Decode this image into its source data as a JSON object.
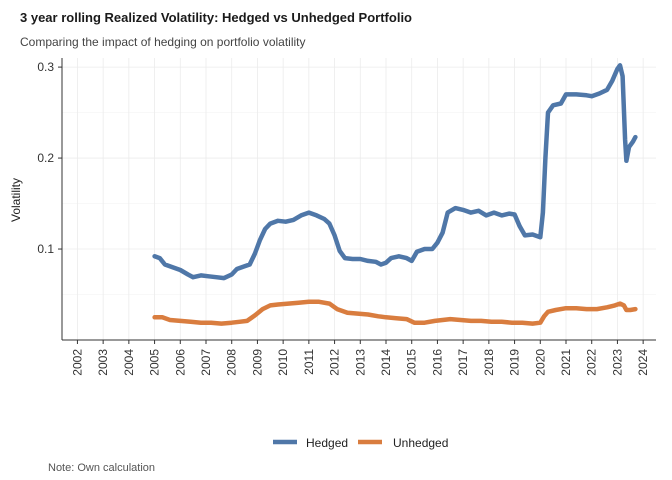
{
  "chart_data": {
    "type": "line",
    "title": "3 year rolling Realized Volatility: Hedged vs Unhedged Portfolio",
    "subtitle": "Comparing the impact of hedging on portfolio volatility",
    "xlabel": "",
    "ylabel": "Volatility",
    "caption": "Note: Own calculation",
    "xlim": [
      2001.4,
      2024.5
    ],
    "ylim": [
      0.0,
      0.31
    ],
    "x_ticks": [
      "2002",
      "2003",
      "2004",
      "2005",
      "2006",
      "2007",
      "2008",
      "2009",
      "2010",
      "2011",
      "2012",
      "2013",
      "2014",
      "2015",
      "2016",
      "2017",
      "2018",
      "2019",
      "2020",
      "2021",
      "2022",
      "2023",
      "2024"
    ],
    "y_ticks": [
      0.1,
      0.2,
      0.3
    ],
    "y_tick_labels": [
      "0.1",
      "0.2",
      "0.3"
    ],
    "grid": true,
    "legend_position": "bottom",
    "series": [
      {
        "name": "Hedged",
        "color": "#4f77a8",
        "points": [
          [
            2005.0,
            0.092
          ],
          [
            2005.2,
            0.09
          ],
          [
            2005.4,
            0.083
          ],
          [
            2005.7,
            0.08
          ],
          [
            2006.0,
            0.077
          ],
          [
            2006.3,
            0.072
          ],
          [
            2006.5,
            0.069
          ],
          [
            2006.8,
            0.071
          ],
          [
            2007.1,
            0.07
          ],
          [
            2007.4,
            0.069
          ],
          [
            2007.7,
            0.068
          ],
          [
            2008.0,
            0.072
          ],
          [
            2008.2,
            0.078
          ],
          [
            2008.5,
            0.081
          ],
          [
            2008.7,
            0.083
          ],
          [
            2008.9,
            0.095
          ],
          [
            2009.1,
            0.11
          ],
          [
            2009.3,
            0.122
          ],
          [
            2009.5,
            0.128
          ],
          [
            2009.8,
            0.131
          ],
          [
            2010.1,
            0.13
          ],
          [
            2010.4,
            0.132
          ],
          [
            2010.7,
            0.137
          ],
          [
            2011.0,
            0.14
          ],
          [
            2011.3,
            0.137
          ],
          [
            2011.6,
            0.133
          ],
          [
            2011.8,
            0.128
          ],
          [
            2012.0,
            0.115
          ],
          [
            2012.2,
            0.098
          ],
          [
            2012.4,
            0.09
          ],
          [
            2012.7,
            0.089
          ],
          [
            2013.0,
            0.089
          ],
          [
            2013.3,
            0.087
          ],
          [
            2013.6,
            0.086
          ],
          [
            2013.8,
            0.083
          ],
          [
            2014.0,
            0.085
          ],
          [
            2014.2,
            0.09
          ],
          [
            2014.5,
            0.092
          ],
          [
            2014.8,
            0.09
          ],
          [
            2015.0,
            0.087
          ],
          [
            2015.2,
            0.097
          ],
          [
            2015.5,
            0.1
          ],
          [
            2015.8,
            0.1
          ],
          [
            2016.0,
            0.107
          ],
          [
            2016.2,
            0.118
          ],
          [
            2016.4,
            0.14
          ],
          [
            2016.7,
            0.145
          ],
          [
            2017.0,
            0.143
          ],
          [
            2017.3,
            0.14
          ],
          [
            2017.6,
            0.142
          ],
          [
            2017.9,
            0.137
          ],
          [
            2018.2,
            0.14
          ],
          [
            2018.5,
            0.137
          ],
          [
            2018.8,
            0.139
          ],
          [
            2019.0,
            0.138
          ],
          [
            2019.2,
            0.125
          ],
          [
            2019.4,
            0.115
          ],
          [
            2019.7,
            0.116
          ],
          [
            2020.0,
            0.113
          ],
          [
            2020.1,
            0.14
          ],
          [
            2020.2,
            0.2
          ],
          [
            2020.3,
            0.25
          ],
          [
            2020.5,
            0.258
          ],
          [
            2020.8,
            0.26
          ],
          [
            2021.0,
            0.27
          ],
          [
            2021.4,
            0.27
          ],
          [
            2021.8,
            0.269
          ],
          [
            2022.0,
            0.268
          ],
          [
            2022.3,
            0.271
          ],
          [
            2022.6,
            0.275
          ],
          [
            2022.8,
            0.285
          ],
          [
            2023.0,
            0.298
          ],
          [
            2023.1,
            0.302
          ],
          [
            2023.2,
            0.29
          ],
          [
            2023.3,
            0.22
          ],
          [
            2023.35,
            0.197
          ],
          [
            2023.45,
            0.212
          ],
          [
            2023.6,
            0.218
          ],
          [
            2023.7,
            0.223
          ]
        ]
      },
      {
        "name": "Unhedged",
        "color": "#d97d3f",
        "points": [
          [
            2005.0,
            0.025
          ],
          [
            2005.3,
            0.025
          ],
          [
            2005.6,
            0.022
          ],
          [
            2006.0,
            0.021
          ],
          [
            2006.4,
            0.02
          ],
          [
            2006.8,
            0.019
          ],
          [
            2007.2,
            0.019
          ],
          [
            2007.6,
            0.018
          ],
          [
            2008.0,
            0.019
          ],
          [
            2008.3,
            0.02
          ],
          [
            2008.6,
            0.021
          ],
          [
            2008.9,
            0.027
          ],
          [
            2009.2,
            0.034
          ],
          [
            2009.5,
            0.038
          ],
          [
            2009.8,
            0.039
          ],
          [
            2010.2,
            0.04
          ],
          [
            2010.6,
            0.041
          ],
          [
            2011.0,
            0.042
          ],
          [
            2011.4,
            0.042
          ],
          [
            2011.8,
            0.04
          ],
          [
            2012.1,
            0.034
          ],
          [
            2012.5,
            0.03
          ],
          [
            2012.9,
            0.029
          ],
          [
            2013.3,
            0.028
          ],
          [
            2013.7,
            0.026
          ],
          [
            2014.0,
            0.025
          ],
          [
            2014.4,
            0.024
          ],
          [
            2014.8,
            0.023
          ],
          [
            2015.1,
            0.019
          ],
          [
            2015.5,
            0.019
          ],
          [
            2015.9,
            0.021
          ],
          [
            2016.2,
            0.022
          ],
          [
            2016.5,
            0.023
          ],
          [
            2016.9,
            0.022
          ],
          [
            2017.3,
            0.021
          ],
          [
            2017.7,
            0.021
          ],
          [
            2018.1,
            0.02
          ],
          [
            2018.5,
            0.02
          ],
          [
            2018.9,
            0.019
          ],
          [
            2019.3,
            0.019
          ],
          [
            2019.7,
            0.018
          ],
          [
            2020.0,
            0.019
          ],
          [
            2020.15,
            0.026
          ],
          [
            2020.3,
            0.031
          ],
          [
            2020.6,
            0.033
          ],
          [
            2021.0,
            0.035
          ],
          [
            2021.4,
            0.035
          ],
          [
            2021.8,
            0.034
          ],
          [
            2022.2,
            0.034
          ],
          [
            2022.6,
            0.036
          ],
          [
            2022.9,
            0.038
          ],
          [
            2023.1,
            0.04
          ],
          [
            2023.25,
            0.038
          ],
          [
            2023.35,
            0.033
          ],
          [
            2023.5,
            0.033
          ],
          [
            2023.7,
            0.034
          ]
        ]
      }
    ]
  }
}
